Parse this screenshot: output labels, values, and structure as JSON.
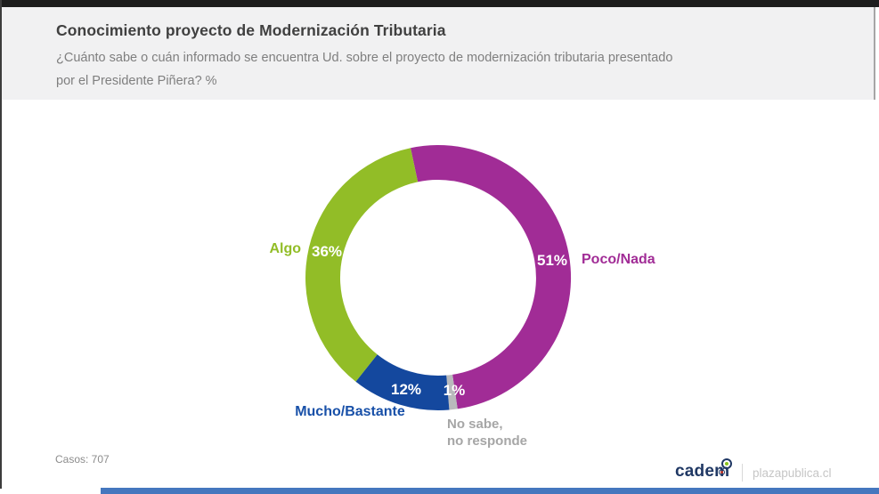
{
  "window": {
    "top_bar_color": "#1d1d1d",
    "left_edge_color": "#3c3c3c",
    "scrollbar_color": "#4577BE",
    "header_bg": "#F1F1F2"
  },
  "header": {
    "title": "Conocimiento proyecto de Modernización Tributaria",
    "subtitle": "¿Cuánto sabe o cuán informado se encuentra Ud. sobre el proyecto de modernización tributaria presentado\npor el Presidente Piñera? %"
  },
  "footer": {
    "cases": "Casos: 707",
    "brand": "cadem",
    "site": "plazapublica.cl"
  },
  "chart_data": {
    "type": "pie",
    "variant": "donut",
    "title": "Conocimiento proyecto de Modernización Tributaria",
    "unit": "%",
    "start_angle_deg": -12,
    "clockwise": true,
    "inner_radius_ratio": 0.74,
    "segments": [
      {
        "label": "Poco/Nada",
        "value": 51,
        "value_label": "51%",
        "color": "#A12C96"
      },
      {
        "label": "No sabe,\nno responde",
        "value": 1,
        "value_label": "1%",
        "color": "#B9BABC",
        "label_color": "#A6A6A6"
      },
      {
        "label": "Mucho/Bastante",
        "value": 12,
        "value_label": "12%",
        "color": "#14489E",
        "label_color": "#1850A8"
      },
      {
        "label": "Algo",
        "value": 36,
        "value_label": "36%",
        "color": "#92BD27"
      }
    ],
    "cases": 707
  }
}
